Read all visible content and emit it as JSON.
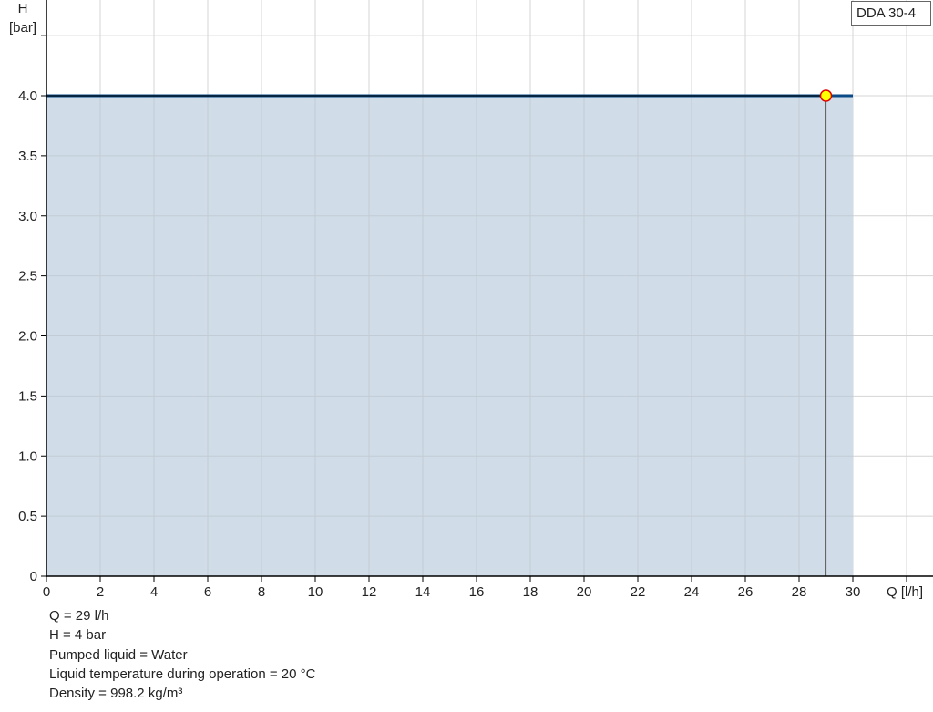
{
  "chart_data": {
    "type": "area",
    "title": "",
    "xlabel": "Q [l/h]",
    "ylabel_line1": "H",
    "ylabel_line2": "[bar]",
    "xlim": [
      0,
      33
    ],
    "ylim": [
      0,
      4.8
    ],
    "x_ticks": [
      0,
      2,
      4,
      6,
      8,
      10,
      12,
      14,
      16,
      18,
      20,
      22,
      24,
      26,
      28,
      30,
      32
    ],
    "x_tick_labels": [
      "0",
      "2",
      "4",
      "6",
      "8",
      "10",
      "12",
      "14",
      "16",
      "18",
      "20",
      "22",
      "24",
      "26",
      "28",
      "30",
      ""
    ],
    "y_ticks": [
      0,
      0.5,
      1.0,
      1.5,
      2.0,
      2.5,
      3.0,
      3.5,
      4.0,
      4.5
    ],
    "y_tick_labels": [
      "0",
      "0.5",
      "1.0",
      "1.5",
      "2.0",
      "2.5",
      "3.0",
      "3.5",
      "4.0",
      ""
    ],
    "grid": true,
    "legend_position": "top-right",
    "series": [
      {
        "name": "DDA 30-4",
        "x": [
          0,
          30
        ],
        "y": [
          4.0,
          4.0
        ],
        "color": "#0a4a86",
        "fill": "#d0dce7"
      }
    ],
    "operating_point": {
      "x": 29,
      "y": 4.0,
      "fill": "#ffff00",
      "stroke": "#e00000"
    }
  },
  "info": [
    "Q = 29 l/h",
    "H = 4 bar",
    "Pumped liquid = Water",
    "Liquid temperature during operation = 20 °C",
    "Density = 998.2 kg/m³"
  ]
}
